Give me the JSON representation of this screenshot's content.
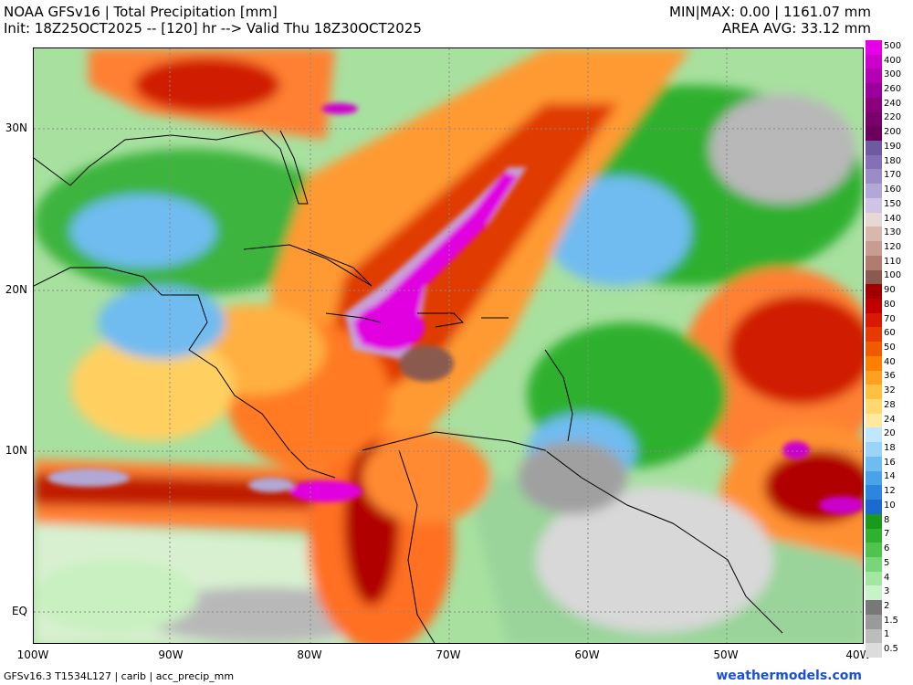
{
  "header": {
    "title_left_1": "NOAA GFSv16 |  Total Precipitation [mm]",
    "title_left_2": "Init: 18Z25OCT2025 -- [120] hr --> Valid Thu 18Z30OCT2025",
    "title_right_1": "MIN|MAX: 0.00 | 1161.07 mm",
    "title_right_2": "AREA AVG: 33.12 mm"
  },
  "axes": {
    "lat_labels": [
      "30N",
      "20N",
      "10N",
      "EQ"
    ],
    "lon_labels": [
      "100W",
      "90W",
      "80W",
      "70W",
      "60W",
      "50W",
      "40W"
    ]
  },
  "colorbar": {
    "labels": [
      "500",
      "400",
      "300",
      "260",
      "240",
      "220",
      "200",
      "190",
      "180",
      "170",
      "160",
      "150",
      "140",
      "130",
      "120",
      "110",
      "100",
      "90",
      "80",
      "70",
      "60",
      "50",
      "40",
      "36",
      "32",
      "28",
      "24",
      "20",
      "18",
      "16",
      "14",
      "12",
      "10",
      "8",
      "7",
      "6",
      "5",
      "4",
      "3",
      "2",
      "1.5",
      "1",
      "0.5"
    ],
    "colors": [
      "#e600e6",
      "#cc00cc",
      "#b300b3",
      "#990099",
      "#8a007a",
      "#7a006a",
      "#6b005c",
      "#6e5aa0",
      "#8470b4",
      "#9b8cc6",
      "#b2a8d6",
      "#cfc4e6",
      "#e8d8d4",
      "#d8b8ac",
      "#c89c90",
      "#b07c70",
      "#8a5a50",
      "#a00000",
      "#c00000",
      "#d91a00",
      "#e83a00",
      "#f25a00",
      "#ff8000",
      "#ffa020",
      "#ffbf40",
      "#ffd870",
      "#ffeaa0",
      "#bfe8ff",
      "#9ad4f7",
      "#6fbcf0",
      "#4aa2e8",
      "#2c86dd",
      "#1a6ad0",
      "#1a9a1a",
      "#2fb02f",
      "#4ec44e",
      "#78d678",
      "#a2e6a2",
      "#c8f2c8",
      "#787878",
      "#9a9a9a",
      "#bcbcbc",
      "#dcdcdc"
    ]
  },
  "footer": {
    "left": "GFSv16.3 T1534L127 | carib | acc_precip_mm",
    "right": "weathermodels.com"
  }
}
